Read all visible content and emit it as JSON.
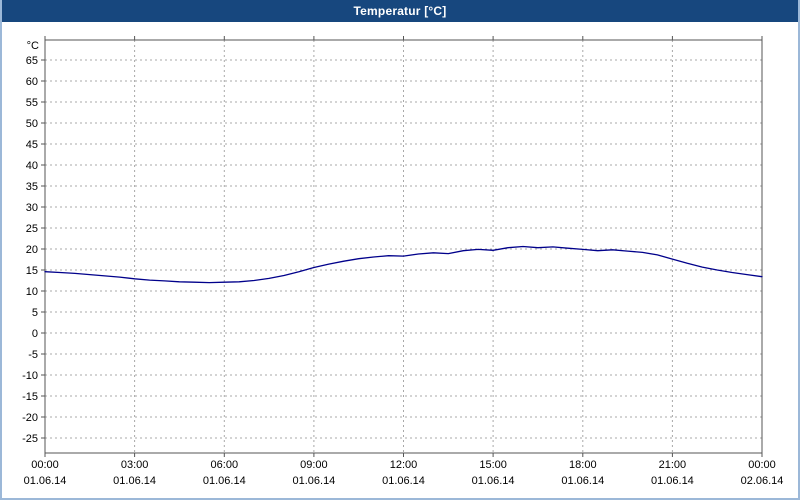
{
  "window": {
    "title": "Temperatur [°C]"
  },
  "colors": {
    "titlebar_bg": "#17477e",
    "titlebar_text": "#ffffff",
    "frame": "#9cb8d8",
    "plot_background": "#ffffff",
    "grid": "#a8a8a8",
    "axis": "#555555",
    "line": "#00008b",
    "tick_label": "#000000"
  },
  "chart_data": {
    "type": "line",
    "title": "Temperatur [°C]",
    "xlabel": "",
    "ylabel": "°C",
    "ylim": [
      -25,
      65
    ],
    "ytick_step": 5,
    "grid": "dashed",
    "legend": "none",
    "yticks": [
      65,
      60,
      55,
      50,
      45,
      40,
      35,
      30,
      25,
      20,
      15,
      10,
      5,
      0,
      -5,
      -10,
      -15,
      -20,
      -25
    ],
    "xticks": [
      {
        "hour": 0,
        "time": "00:00",
        "date": "01.06.14"
      },
      {
        "hour": 3,
        "time": "03:00",
        "date": "01.06.14"
      },
      {
        "hour": 6,
        "time": "06:00",
        "date": "01.06.14"
      },
      {
        "hour": 9,
        "time": "09:00",
        "date": "01.06.14"
      },
      {
        "hour": 12,
        "time": "12:00",
        "date": "01.06.14"
      },
      {
        "hour": 15,
        "time": "15:00",
        "date": "01.06.14"
      },
      {
        "hour": 18,
        "time": "18:00",
        "date": "01.06.14"
      },
      {
        "hour": 21,
        "time": "21:00",
        "date": "01.06.14"
      },
      {
        "hour": 24,
        "time": "00:00",
        "date": "02.06.14"
      }
    ],
    "series": [
      {
        "name": "Temperatur",
        "color": "#00008b",
        "x": [
          0,
          0.5,
          1,
          1.5,
          2,
          2.5,
          3,
          3.5,
          4,
          4.5,
          5,
          5.5,
          6,
          6.5,
          7,
          7.5,
          8,
          8.5,
          9,
          9.5,
          10,
          10.5,
          11,
          11.5,
          12,
          12.5,
          13,
          13.5,
          14,
          14.5,
          15,
          15.5,
          16,
          16.5,
          17,
          17.5,
          18,
          18.5,
          19,
          19.5,
          20,
          20.5,
          21,
          21.5,
          22,
          22.5,
          23,
          23.5,
          24
        ],
        "values": [
          14.6,
          14.4,
          14.2,
          13.9,
          13.6,
          13.3,
          12.9,
          12.6,
          12.4,
          12.2,
          12.1,
          12.0,
          12.1,
          12.2,
          12.5,
          13.0,
          13.7,
          14.6,
          15.6,
          16.4,
          17.1,
          17.7,
          18.1,
          18.4,
          18.3,
          18.8,
          19.1,
          18.9,
          19.6,
          19.9,
          19.7,
          20.3,
          20.6,
          20.3,
          20.5,
          20.2,
          19.9,
          19.6,
          19.8,
          19.5,
          19.2,
          18.6,
          17.6,
          16.6,
          15.7,
          15.0,
          14.4,
          13.9,
          13.4
        ]
      }
    ]
  }
}
